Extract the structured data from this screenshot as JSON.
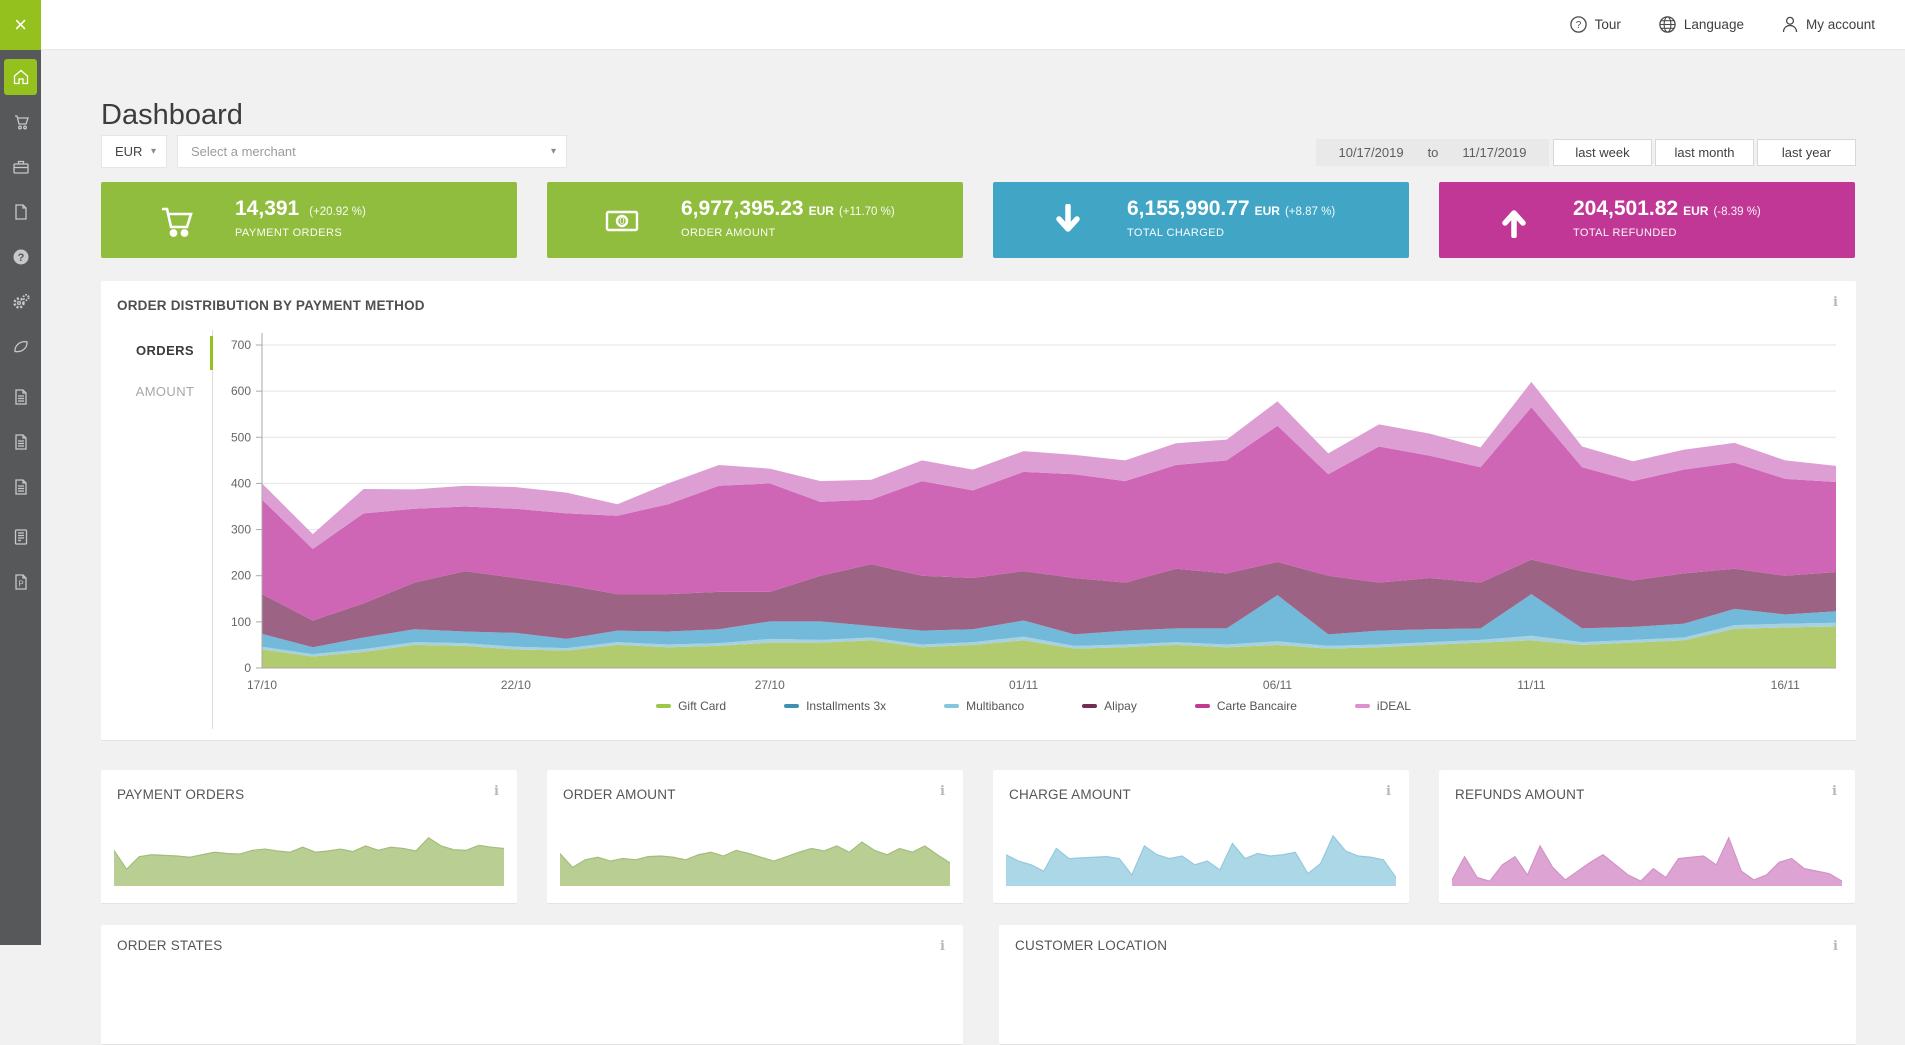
{
  "icons": {
    "close": "×",
    "caret": "▾",
    "info": "i"
  },
  "header": {
    "nav": [
      {
        "label": "Tour",
        "icon": "question-circle-icon"
      },
      {
        "label": "Language",
        "icon": "globe-icon"
      },
      {
        "label": "My account",
        "icon": "person-icon"
      }
    ]
  },
  "sidebar": {
    "items": [
      "home",
      "cart",
      "briefcase",
      "document",
      "help",
      "settings",
      "leaf",
      "report",
      "report",
      "report",
      "terminal",
      "document-p"
    ],
    "active_item": "home",
    "active_color": "#95c11f",
    "background": "#57585a"
  },
  "page": {
    "title": "Dashboard"
  },
  "filters": {
    "currency": "EUR",
    "merchant_placeholder": "Select a merchant",
    "date_from": "10/17/2019",
    "date_to_label": "to",
    "date_to": "11/17/2019",
    "quick_ranges": [
      "last week",
      "last month",
      "last year"
    ]
  },
  "kpis": [
    {
      "value": "14,391",
      "unit": "",
      "delta": "(+20.92 %)",
      "label": "PAYMENT ORDERS",
      "color": "#90bd3d",
      "icon": "cart-icon"
    },
    {
      "value": "6,977,395.23",
      "unit": "EUR",
      "delta": "(+11.70 %)",
      "label": "ORDER AMOUNT",
      "color": "#90bd3d",
      "icon": "banknote-icon"
    },
    {
      "value": "6,155,990.77",
      "unit": "EUR",
      "delta": "(+8.87 %)",
      "label": "TOTAL CHARGED",
      "color": "#41a6c6",
      "icon": "arrow-down-icon"
    },
    {
      "value": "204,501.82",
      "unit": "EUR",
      "delta": "(-8.39 %)",
      "label": "TOTAL REFUNDED",
      "color": "#c03795",
      "icon": "arrow-up-icon"
    }
  ],
  "chart_data": [
    {
      "type": "area",
      "stacked": true,
      "title": "ORDER DISTRIBUTION BY PAYMENT METHOD",
      "tabs": [
        "ORDERS",
        "AMOUNT"
      ],
      "active_tab": "ORDERS",
      "n_points": 32,
      "x_tick_labels": [
        "17/10",
        "22/10",
        "27/10",
        "01/11",
        "06/11",
        "11/11",
        "16/11"
      ],
      "x_tick_positions": [
        0,
        5,
        10,
        15,
        20,
        25,
        30
      ],
      "ylim": [
        0,
        700
      ],
      "y_ticks": [
        0,
        100,
        200,
        300,
        400,
        500,
        600,
        700
      ],
      "grid": true,
      "legend_position": "bottom",
      "series": [
        {
          "name": "Gift Card",
          "legend_color": "#9cc74b",
          "fill": "#b2cb6e",
          "values": [
            40,
            25,
            35,
            50,
            48,
            40,
            38,
            50,
            45,
            48,
            55,
            55,
            60,
            45,
            50,
            60,
            42,
            45,
            50,
            45,
            50,
            42,
            45,
            50,
            55,
            60,
            50,
            55,
            60,
            85,
            88,
            90
          ]
        },
        {
          "name": "Installments 3x",
          "legend_color": "#4090b1",
          "fill": "#a6d1e0",
          "values": [
            6,
            5,
            6,
            6,
            6,
            6,
            5,
            6,
            6,
            6,
            8,
            6,
            6,
            6,
            6,
            8,
            6,
            6,
            6,
            6,
            8,
            6,
            6,
            6,
            6,
            10,
            6,
            6,
            6,
            8,
            8,
            8
          ]
        },
        {
          "name": "Multibanco",
          "legend_color": "#84c7dc",
          "fill": "#72b9da",
          "values": [
            28,
            15,
            25,
            28,
            25,
            30,
            20,
            25,
            28,
            30,
            38,
            40,
            25,
            30,
            28,
            35,
            25,
            30,
            30,
            35,
            100,
            25,
            30,
            28,
            25,
            90,
            30,
            28,
            30,
            35,
            20,
            25
          ]
        },
        {
          "name": "Alipay",
          "legend_color": "#762d52",
          "fill": "#9d6384",
          "values": [
            86,
            58,
            74,
            101,
            131,
            119,
            117,
            79,
            81,
            81,
            64,
            99,
            134,
            119,
            111,
            107,
            122,
            104,
            129,
            119,
            72,
            127,
            104,
            111,
            99,
            75,
            124,
            101,
            109,
            87,
            84,
            85
          ]
        },
        {
          "name": "Carte Bancaire",
          "legend_color": "#c23b93",
          "fill": "#ce66b5",
          "values": [
            205,
            155,
            195,
            160,
            140,
            150,
            155,
            170,
            195,
            230,
            235,
            160,
            140,
            205,
            190,
            215,
            225,
            220,
            225,
            245,
            295,
            220,
            295,
            265,
            250,
            330,
            225,
            215,
            225,
            230,
            210,
            195
          ]
        },
        {
          "name": "iDEAL",
          "legend_color": "#e08fcd",
          "fill": "#dc9ed3",
          "values": [
            35,
            32,
            53,
            42,
            45,
            47,
            45,
            25,
            45,
            45,
            32,
            45,
            43,
            45,
            45,
            45,
            42,
            45,
            47,
            45,
            53,
            45,
            48,
            48,
            43,
            55,
            45,
            43,
            43,
            43,
            40,
            35
          ]
        }
      ]
    },
    {
      "type": "area",
      "title": "PAYMENT ORDERS",
      "fill": "#b9ce93",
      "stroke": "#a3bd7c",
      "values": [
        55,
        25,
        45,
        48,
        47,
        46,
        44,
        48,
        52,
        50,
        49,
        55,
        57,
        54,
        52,
        60,
        52,
        54,
        57,
        53,
        62,
        55,
        60,
        58,
        54,
        75,
        62,
        56,
        55,
        63,
        60,
        58
      ]
    },
    {
      "type": "area",
      "title": "ORDER AMOUNT",
      "fill": "#b9ce93",
      "stroke": "#a3bd7c",
      "values": [
        50,
        28,
        40,
        44,
        38,
        42,
        40,
        45,
        46,
        44,
        40,
        48,
        52,
        46,
        55,
        50,
        44,
        38,
        45,
        52,
        58,
        54,
        62,
        52,
        68,
        55,
        48,
        58,
        52,
        62,
        48,
        35
      ]
    },
    {
      "type": "area",
      "title": "CHARGE AMOUNT",
      "fill": "#abd7e7",
      "stroke": "#93c9dd",
      "values": [
        48,
        38,
        32,
        22,
        58,
        42,
        43,
        44,
        45,
        42,
        16,
        62,
        48,
        42,
        46,
        32,
        38,
        24,
        66,
        42,
        50,
        46,
        48,
        52,
        18,
        34,
        78,
        54,
        46,
        44,
        40,
        12
      ]
    },
    {
      "type": "area",
      "title": "REFUNDS AMOUNT",
      "fill": "#dda4d3",
      "stroke": "#d392c7",
      "values": [
        8,
        45,
        12,
        6,
        32,
        45,
        16,
        62,
        28,
        8,
        22,
        36,
        48,
        32,
        16,
        6,
        26,
        12,
        42,
        44,
        46,
        32,
        75,
        22,
        8,
        16,
        36,
        42,
        26,
        22,
        18,
        6
      ]
    }
  ],
  "bottom_cards": [
    {
      "title": "ORDER STATES"
    },
    {
      "title": "CUSTOMER LOCATION"
    }
  ]
}
